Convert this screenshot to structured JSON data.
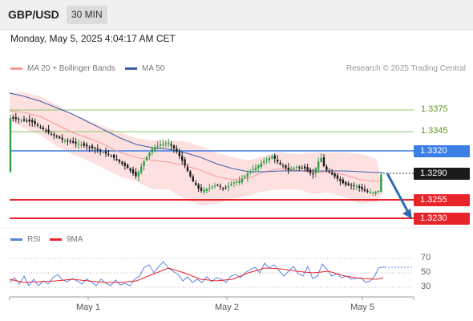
{
  "header": {
    "symbol": "GBP/USD",
    "timeframe": "30 MIN"
  },
  "datetime": "Monday, May 5, 2025 4:04:17 AM CET",
  "legend": {
    "ma20": {
      "label": "MA 20 + Bollinger Bands",
      "color": "#f59a9a"
    },
    "ma50": {
      "label": "MA 50",
      "color": "#3d5ea8"
    },
    "rsi": {
      "label": "RSI",
      "color": "#5b84e0"
    },
    "ma9": {
      "label": "9MA",
      "color": "#e8242b"
    }
  },
  "credit": "Research © 2025 Trading Central",
  "levels": {
    "r3": "1.3375",
    "r2": "1.3345",
    "r1": "1.3320",
    "pivot": "1.3290",
    "s1": "1.3255",
    "s2": "1.3230"
  },
  "rsi_ticks": [
    "70",
    "50",
    "30"
  ],
  "x_axis": [
    "May 1",
    "May 2",
    "May 5"
  ],
  "colors": {
    "bull": "#2e9e45",
    "bear": "#1a1a1a",
    "resistance_blue": "#3b7ee6",
    "support_red": "#e8242b",
    "green_level": "#8dc46b",
    "band_fill": "#fde1e1",
    "arrow": "#2e6db3"
  }
}
